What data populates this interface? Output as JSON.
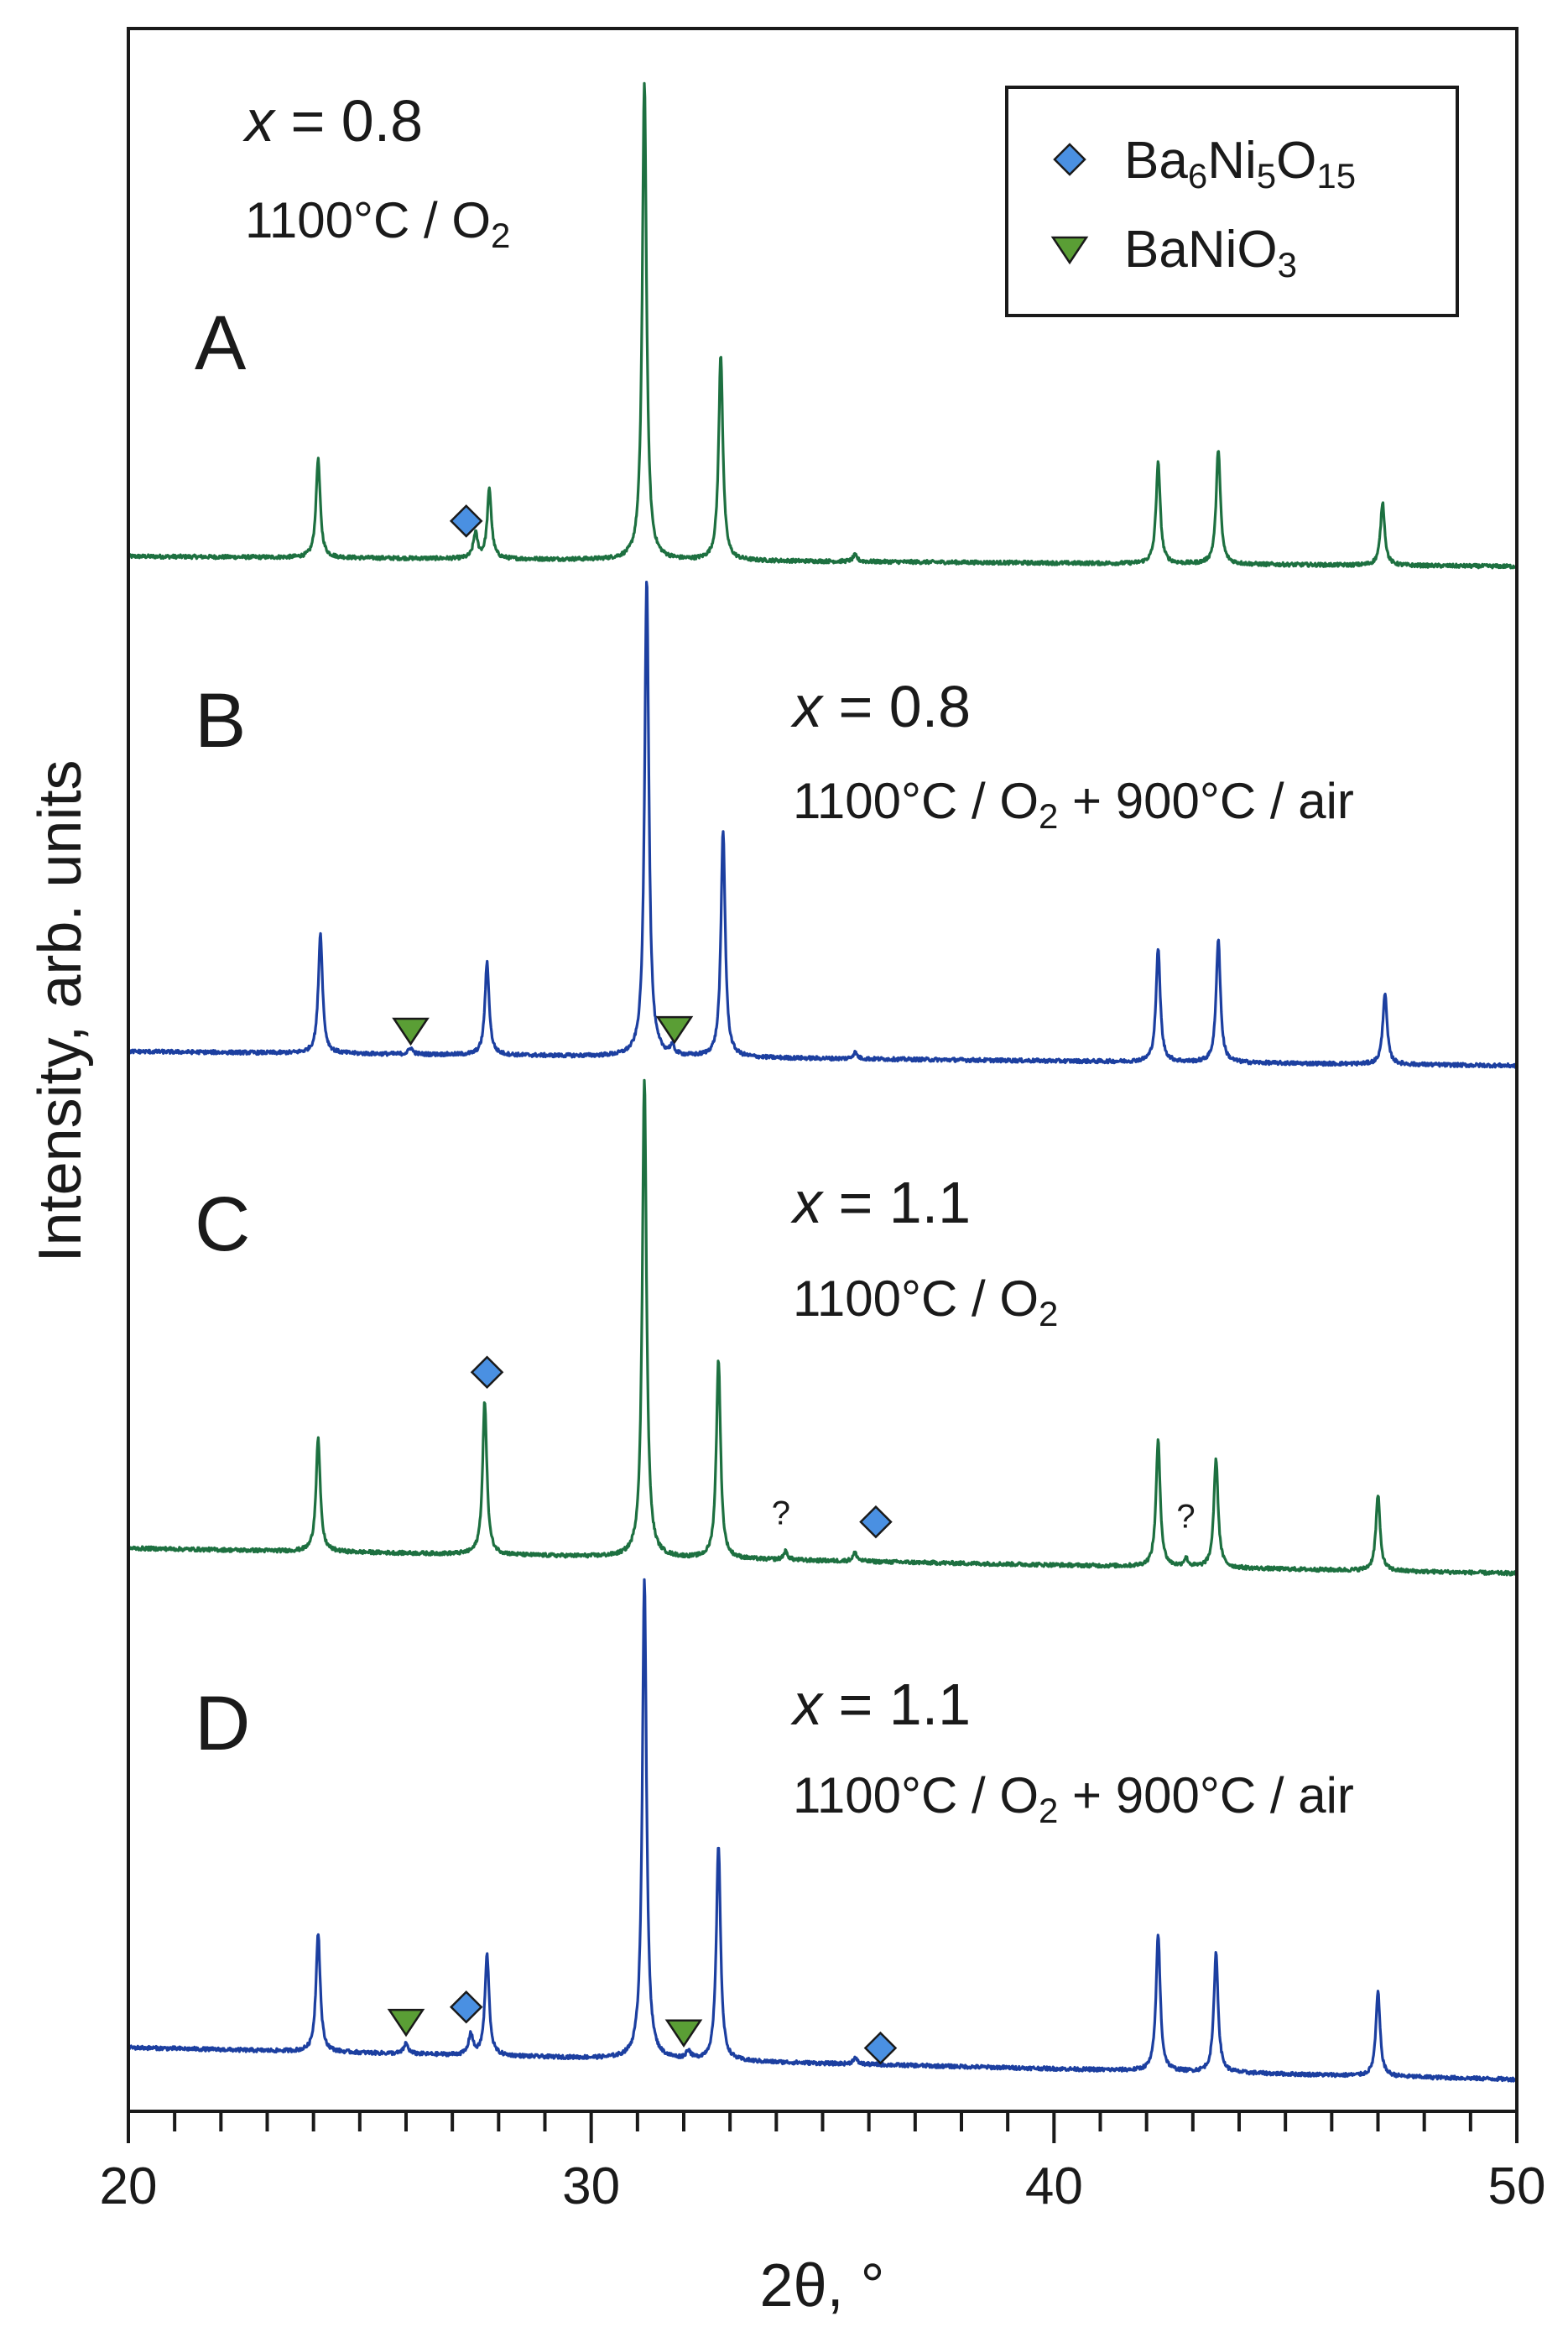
{
  "chart_data": {
    "type": "line",
    "title": "",
    "xlabel": "2θ, °",
    "ylabel": "Intensity, arb. units",
    "xlim": [
      20,
      50
    ],
    "x_major_ticks": [
      20,
      30,
      40,
      50
    ],
    "x_minor_step": 1,
    "x_tick_labels": [
      "20",
      "30",
      "40",
      "50"
    ],
    "y_ticks": "none",
    "grid": false,
    "legend": {
      "placement": "top-right",
      "entries": [
        {
          "marker": "diamond",
          "color": "#4a90e2",
          "name": "Ba6Ni5O15",
          "label_base": "Ba",
          "sub1": "6",
          "mid": "Ni",
          "sub2": "5",
          "tail": "O",
          "sub3": "15"
        },
        {
          "marker": "triangle-down",
          "color": "#5a9e35",
          "name": "BaNiO3",
          "label_base": "BaNiO",
          "sub1": "3"
        }
      ]
    },
    "series": [
      {
        "name": "A",
        "panel_label": "A",
        "color": "#1d7040",
        "composition_var": "x",
        "composition_eq": " = 0.8",
        "treatment_main": "1100°C / O",
        "treatment_sub": "2",
        "treatment_tail": "",
        "baseline_level": [
          0.12,
          0.05
        ],
        "peaks": [
          {
            "x": 24.1,
            "h": 0.47
          },
          {
            "x": 27.5,
            "h": 0.12
          },
          {
            "x": 27.8,
            "h": 0.33
          },
          {
            "x": 31.15,
            "h": 2.28
          },
          {
            "x": 32.8,
            "h": 0.98
          },
          {
            "x": 35.7,
            "h": 0.03
          },
          {
            "x": 42.25,
            "h": 0.48
          },
          {
            "x": 43.55,
            "h": 0.55
          },
          {
            "x": 47.1,
            "h": 0.3
          }
        ],
        "markers": [
          {
            "type": "diamond",
            "x": 27.3,
            "h": 0.18
          }
        ]
      },
      {
        "name": "B",
        "panel_label": "B",
        "color": "#1c3fa0",
        "composition_var": "x",
        "composition_eq": " = 0.8",
        "treatment_main": "1100°C / O",
        "treatment_sub": "2",
        "treatment_tail": " + 900°C / air",
        "baseline_level": [
          0.1,
          0.04
        ],
        "peaks": [
          {
            "x": 24.15,
            "h": 0.57
          },
          {
            "x": 26.1,
            "h": 0.03
          },
          {
            "x": 27.75,
            "h": 0.44
          },
          {
            "x": 31.2,
            "h": 2.28
          },
          {
            "x": 31.75,
            "h": 0.04
          },
          {
            "x": 32.85,
            "h": 1.08
          },
          {
            "x": 35.7,
            "h": 0.03
          },
          {
            "x": 42.25,
            "h": 0.54
          },
          {
            "x": 43.55,
            "h": 0.59
          },
          {
            "x": 47.15,
            "h": 0.34
          }
        ],
        "markers": [
          {
            "type": "triangle",
            "x": 26.1,
            "h": 0.11
          },
          {
            "type": "triangle",
            "x": 31.8,
            "h": 0.13
          }
        ]
      },
      {
        "name": "C",
        "panel_label": "C",
        "color": "#1d7040",
        "composition_var": "x",
        "composition_eq": " = 1.1",
        "treatment_main": "1100°C / O",
        "treatment_sub": "2",
        "treatment_tail": "",
        "baseline_level": [
          0.1,
          0.04
        ],
        "peaks": [
          {
            "x": 24.1,
            "h": 0.54
          },
          {
            "x": 27.7,
            "h": 0.73
          },
          {
            "x": 31.15,
            "h": 2.28
          },
          {
            "x": 32.75,
            "h": 0.95
          },
          {
            "x": 34.2,
            "h": 0.04
          },
          {
            "x": 35.7,
            "h": 0.04
          },
          {
            "x": 42.25,
            "h": 0.6
          },
          {
            "x": 42.85,
            "h": 0.04
          },
          {
            "x": 43.5,
            "h": 0.52
          },
          {
            "x": 47.0,
            "h": 0.36
          }
        ],
        "markers": [
          {
            "type": "diamond",
            "x": 27.75,
            "h": 0.87
          },
          {
            "type": "diamond",
            "x": 36.15,
            "h": 0.19
          }
        ],
        "annotations": [
          {
            "text": "?",
            "x": 34.1,
            "h": 0.17
          },
          {
            "text": "?",
            "x": 42.85,
            "h": 0.19
          }
        ]
      },
      {
        "name": "D",
        "panel_label": "D",
        "color": "#1c3fa0",
        "composition_var": "x",
        "composition_eq": " = 1.1",
        "treatment_main": "1100°C / O",
        "treatment_sub": "2",
        "treatment_tail": " + 900°C / air",
        "baseline_level": [
          0.1,
          0.04
        ],
        "peaks": [
          {
            "x": 24.1,
            "h": 0.57
          },
          {
            "x": 26.0,
            "h": 0.05
          },
          {
            "x": 27.4,
            "h": 0.1
          },
          {
            "x": 27.75,
            "h": 0.48
          },
          {
            "x": 31.15,
            "h": 2.28
          },
          {
            "x": 32.1,
            "h": 0.04
          },
          {
            "x": 32.75,
            "h": 1.03
          },
          {
            "x": 35.7,
            "h": 0.03
          },
          {
            "x": 42.25,
            "h": 0.65
          },
          {
            "x": 43.5,
            "h": 0.57
          },
          {
            "x": 47.0,
            "h": 0.4
          }
        ],
        "markers": [
          {
            "type": "triangle",
            "x": 26.0,
            "h": 0.15
          },
          {
            "type": "diamond",
            "x": 27.3,
            "h": 0.23
          },
          {
            "type": "triangle",
            "x": 32.0,
            "h": 0.13
          },
          {
            "type": "diamond",
            "x": 36.25,
            "h": 0.08
          }
        ]
      }
    ]
  }
}
